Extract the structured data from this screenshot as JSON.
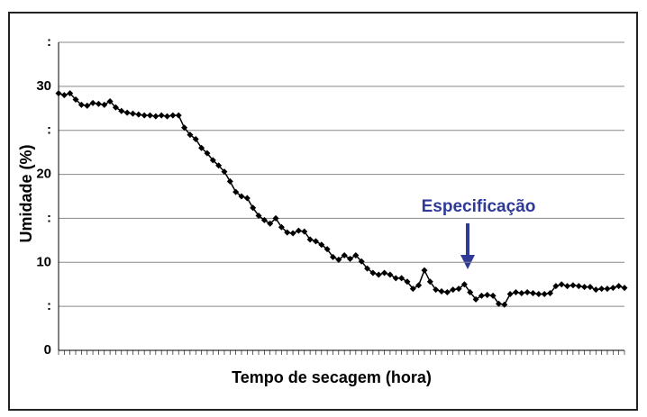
{
  "chart_data": {
    "type": "line",
    "x_label": "Tempo de secagem (hora)",
    "y_label": "Umidade (%)",
    "annotation": "Especificação",
    "categories": [
      null,
      null,
      null,
      null,
      null,
      null,
      null,
      null,
      null,
      null,
      null,
      null,
      null,
      null,
      null,
      null,
      null,
      null,
      null,
      null,
      null,
      null,
      null,
      null,
      null,
      null,
      null,
      null,
      null,
      null,
      null,
      null,
      null,
      null,
      null,
      null,
      null,
      null,
      null,
      null,
      null,
      null,
      null,
      null,
      null,
      null,
      null,
      null,
      null,
      null,
      null,
      null,
      null,
      null,
      null,
      null,
      null,
      null,
      null,
      null,
      null,
      null,
      null,
      null,
      null,
      null,
      null,
      null,
      null,
      null,
      null,
      null,
      null,
      null,
      null,
      null,
      null,
      null,
      null,
      null,
      null,
      null,
      null,
      null,
      null,
      null,
      null,
      null,
      null,
      null,
      null,
      null,
      null,
      null,
      null,
      null,
      null,
      null,
      null,
      null
    ],
    "values": [
      29.2,
      29.0,
      29.2,
      28.5,
      27.9,
      27.8,
      28.1,
      28.0,
      27.9,
      28.3,
      27.6,
      27.2,
      27.0,
      26.9,
      26.8,
      26.7,
      26.7,
      26.6,
      26.7,
      26.6,
      26.7,
      26.7,
      25.3,
      24.5,
      24.0,
      23.0,
      22.4,
      21.6,
      21.0,
      20.3,
      19.2,
      18.0,
      17.5,
      17.3,
      16.2,
      15.3,
      14.8,
      14.4,
      15.0,
      14.0,
      13.4,
      13.3,
      13.6,
      13.5,
      12.6,
      12.4,
      12.0,
      11.5,
      10.6,
      10.3,
      10.8,
      10.4,
      10.8,
      10.1,
      9.3,
      8.8,
      8.6,
      8.8,
      8.6,
      8.2,
      8.2,
      7.8,
      7.0,
      7.4,
      9.1,
      7.8,
      6.9,
      6.7,
      6.6,
      6.9,
      7.0,
      7.5,
      6.6,
      5.8,
      6.2,
      6.3,
      6.2,
      5.3,
      5.2,
      6.4,
      6.6,
      6.5,
      6.6,
      6.5,
      6.4,
      6.4,
      6.5,
      7.3,
      7.5,
      7.3,
      7.4,
      7.3,
      7.2,
      7.2,
      6.9,
      7.0,
      7.0,
      7.1,
      7.3,
      7.1
    ],
    "color": "#000000",
    "ylim": [
      0,
      35
    ],
    "yticks": [
      0,
      {
        "value": 5,
        "label": ":"
      },
      10,
      {
        "value": 15,
        "label": ":"
      },
      20,
      {
        "value": 25,
        "label": ":"
      },
      30,
      {
        "value": 35,
        "label": ":"
      }
    ],
    "grid": true
  }
}
